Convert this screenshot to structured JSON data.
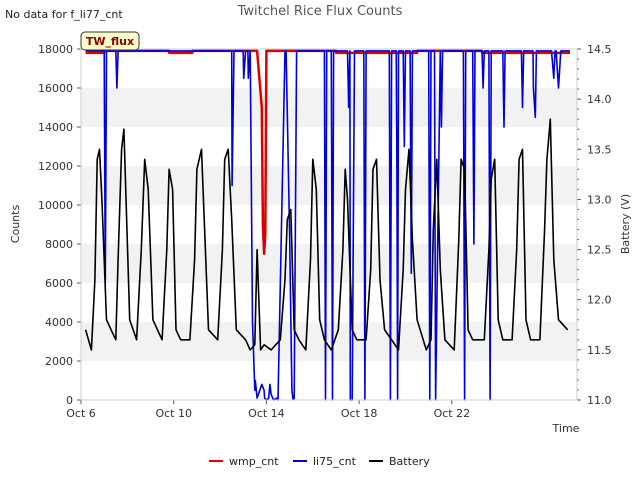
{
  "chart_data": {
    "type": "line",
    "title": "Twitchel Rice Flux Counts",
    "no_data_note": "No data for f_li77_cnt",
    "site_label": "TW_flux",
    "xlabel": "Time",
    "ylabel": "Counts",
    "y2label": "Battery (V)",
    "xlim_days": [
      0,
      21.4
    ],
    "x_tick_days": [
      0,
      4,
      8,
      12,
      16
    ],
    "x_tick_labels": [
      "Oct 6",
      "Oct 10",
      "Oct 14",
      "Oct 18",
      "Oct 22"
    ],
    "ylim": [
      0,
      18000
    ],
    "y_ticks": [
      0,
      2000,
      4000,
      6000,
      8000,
      10000,
      12000,
      14000,
      16000,
      18000
    ],
    "y_tick_labels": [
      "0",
      "2000",
      "4000",
      "6000",
      "8000",
      "10000",
      "12000",
      "14000",
      "16000",
      "18000"
    ],
    "y2lim": [
      11.0,
      14.5
    ],
    "y2_ticks": [
      11.0,
      11.5,
      12.0,
      12.5,
      13.0,
      13.5,
      14.0,
      14.5
    ],
    "y2_tick_labels": [
      "11.0",
      "11.5",
      "12.0",
      "12.5",
      "13.0",
      "13.5",
      "14.0",
      "14.5"
    ],
    "grid": "horizontal bands",
    "legend_position": "bottom-center",
    "colors": {
      "wmp_cnt": "#dd0000",
      "li75_cnt": "#0000dd",
      "Battery": "#000000",
      "band": "#f2f2f2",
      "site_label_bg": "#ffffcc"
    },
    "series": [
      {
        "name": "wmp_cnt",
        "axis": "left",
        "x": [
          0.2,
          1.0,
          1.01,
          2.0,
          3.8,
          3.81,
          4.8,
          4.81,
          7.6,
          7.8,
          7.85,
          7.9,
          7.95,
          8.0,
          8.3,
          8.4,
          10.0,
          11.0,
          11.01,
          12.5,
          12.51,
          14.5,
          14.51,
          17.3,
          17.31,
          21.1
        ],
        "values": [
          17800,
          17800,
          17900,
          17900,
          17900,
          17800,
          17800,
          17900,
          17900,
          15000,
          9000,
          7500,
          8500,
          17900,
          17900,
          17900,
          17900,
          17900,
          17800,
          17800,
          17800,
          17800,
          17900,
          17900,
          17800,
          17800
        ]
      },
      {
        "name": "li75_cnt",
        "axis": "left",
        "x": [
          0.2,
          1.0,
          1.05,
          1.1,
          1.2,
          1.5,
          1.55,
          1.6,
          1.7,
          6.5,
          6.52,
          6.6,
          7.0,
          7.02,
          7.1,
          7.2,
          7.22,
          7.3,
          7.4,
          7.5,
          7.52,
          7.6,
          7.8,
          7.9,
          7.92,
          8.0,
          8.1,
          8.15,
          8.2,
          8.3,
          8.45,
          8.5,
          8.8,
          8.85,
          9.0,
          9.1,
          9.15,
          9.2,
          9.3,
          10.5,
          10.55,
          10.6,
          10.8,
          10.85,
          10.9,
          11.5,
          11.55,
          11.6,
          11.62,
          11.7,
          11.8,
          12.2,
          12.25,
          12.3,
          13.3,
          13.35,
          13.4,
          13.6,
          13.63,
          13.66,
          13.7,
          13.9,
          13.95,
          14.0,
          14.2,
          14.25,
          14.3,
          15.0,
          15.05,
          15.1,
          15.25,
          15.3,
          15.5,
          15.55,
          15.6,
          15.8,
          16.5,
          16.55,
          16.6,
          16.9,
          16.95,
          17.0,
          17.3,
          17.35,
          17.4,
          17.5,
          17.6,
          17.65,
          17.7,
          18.2,
          18.25,
          18.3,
          19.0,
          19.05,
          19.1,
          19.5,
          19.52,
          19.6,
          19.65,
          19.7,
          20.0,
          20.3,
          20.4,
          20.45,
          20.5,
          20.6,
          20.7,
          21.1
        ],
        "values": [
          17900,
          17900,
          6000,
          17900,
          17900,
          17900,
          16000,
          17900,
          17900,
          17900,
          11000,
          17900,
          17900,
          16500,
          17900,
          17900,
          16500,
          17900,
          4000,
          500,
          1000,
          100,
          800,
          500,
          100,
          0,
          100,
          800,
          300,
          0,
          100,
          0,
          17900,
          17900,
          8500,
          500,
          0,
          100,
          17900,
          17900,
          0,
          17900,
          17900,
          0,
          17900,
          17900,
          15000,
          17900,
          0,
          0,
          17900,
          17900,
          0,
          17900,
          17900,
          0,
          17900,
          17900,
          12000,
          0,
          17900,
          17900,
          13000,
          17900,
          17900,
          6500,
          17900,
          17900,
          0,
          17900,
          17900,
          0,
          17900,
          14000,
          17900,
          17900,
          17900,
          0,
          17900,
          17900,
          8000,
          17900,
          17900,
          16000,
          17900,
          17900,
          17900,
          0,
          17900,
          17900,
          14000,
          17900,
          17900,
          15000,
          17900,
          17900,
          16000,
          14500,
          17900,
          17900,
          17900,
          17900,
          16500,
          17900,
          17900,
          16000,
          17900,
          17900
        ]
      },
      {
        "name": "Battery",
        "axis": "right",
        "x": [
          0.2,
          0.45,
          0.6,
          0.7,
          0.8,
          0.9,
          1.1,
          1.3,
          1.5,
          1.6,
          1.75,
          1.85,
          2.1,
          2.4,
          2.6,
          2.75,
          2.9,
          3.1,
          3.5,
          3.7,
          3.8,
          3.95,
          4.1,
          4.3,
          4.7,
          4.9,
          5.0,
          5.2,
          5.35,
          5.5,
          5.9,
          6.1,
          6.2,
          6.35,
          6.5,
          6.7,
          7.1,
          7.3,
          7.5,
          7.6,
          7.75,
          7.9,
          8.2,
          8.6,
          8.8,
          8.9,
          9.05,
          9.2,
          9.4,
          9.7,
          9.9,
          10.0,
          10.15,
          10.3,
          10.5,
          10.8,
          11.1,
          11.3,
          11.4,
          11.5,
          11.7,
          11.9,
          12.3,
          12.5,
          12.6,
          12.75,
          12.9,
          13.1,
          13.4,
          13.7,
          13.9,
          14.0,
          14.15,
          14.3,
          14.5,
          14.9,
          15.1,
          15.2,
          15.35,
          15.5,
          15.7,
          16.1,
          16.3,
          16.4,
          16.55,
          16.7,
          16.9,
          17.4,
          17.6,
          17.7,
          17.85,
          18.0,
          18.2,
          18.6,
          18.8,
          18.9,
          19.05,
          19.2,
          19.4,
          19.8,
          20.0,
          20.1,
          20.25,
          20.4,
          20.6,
          21.0
        ],
        "values": [
          11.7,
          11.5,
          12.2,
          13.4,
          13.5,
          13.0,
          11.8,
          11.7,
          11.6,
          12.4,
          13.5,
          13.7,
          11.8,
          11.6,
          12.5,
          13.4,
          13.1,
          11.8,
          11.6,
          12.5,
          13.3,
          13.1,
          11.7,
          11.6,
          11.6,
          12.4,
          13.3,
          13.5,
          12.6,
          11.7,
          11.6,
          12.5,
          13.4,
          13.5,
          12.8,
          11.7,
          11.6,
          11.5,
          11.55,
          12.5,
          11.5,
          11.55,
          11.5,
          11.6,
          12.2,
          12.8,
          12.9,
          11.7,
          11.6,
          11.5,
          12.4,
          13.4,
          13.1,
          11.8,
          11.6,
          11.5,
          11.7,
          12.5,
          13.3,
          13.0,
          11.7,
          11.6,
          11.6,
          12.3,
          13.3,
          13.4,
          12.2,
          11.7,
          11.6,
          11.5,
          12.3,
          13.1,
          13.5,
          12.6,
          11.8,
          11.5,
          11.6,
          12.7,
          13.4,
          12.3,
          11.6,
          11.5,
          12.6,
          13.4,
          13.3,
          11.7,
          11.6,
          11.6,
          12.5,
          13.2,
          13.4,
          11.8,
          11.6,
          11.6,
          12.5,
          13.4,
          13.5,
          11.8,
          11.6,
          11.6,
          12.7,
          13.4,
          13.8,
          12.4,
          11.8,
          11.7
        ]
      }
    ]
  }
}
